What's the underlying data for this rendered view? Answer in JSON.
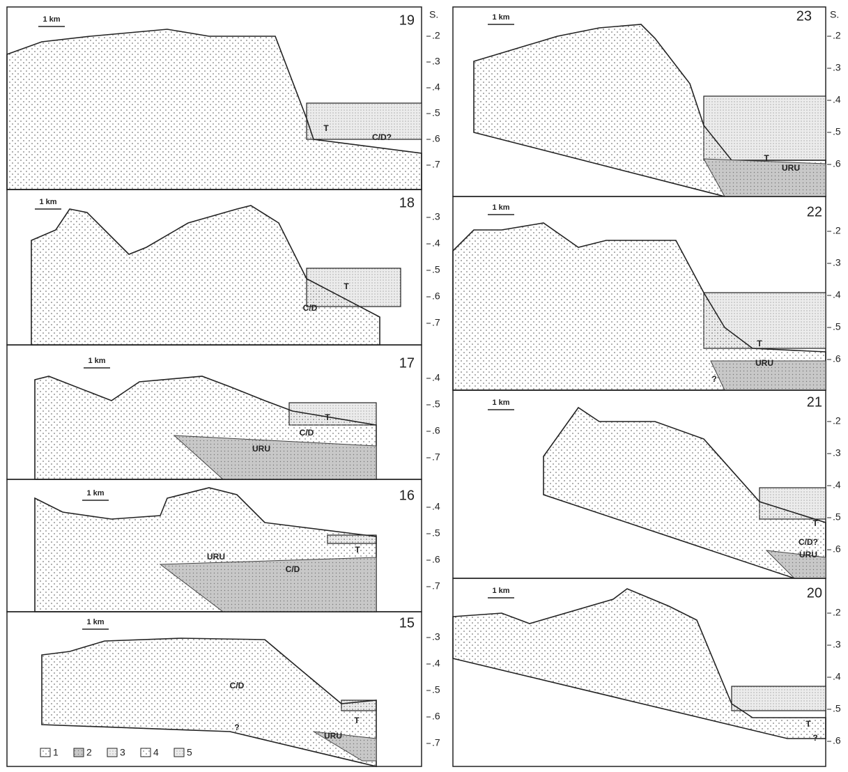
{
  "panels": [
    {
      "number": "19",
      "scale": "1 km",
      "axis_unit": "S.",
      "ticks": [
        ".2",
        ".3",
        ".4",
        ".5",
        ".6",
        ".7"
      ],
      "annotations": [
        "T",
        "C/D?"
      ]
    },
    {
      "number": "18",
      "scale": "1 km",
      "ticks": [
        ".3",
        ".4",
        ".5",
        ".6",
        ".7"
      ],
      "annotations": [
        "T",
        "C/D"
      ]
    },
    {
      "number": "17",
      "scale": "1 km",
      "ticks": [
        ".4",
        ".5",
        ".6",
        ".7"
      ],
      "annotations": [
        "T",
        "C/D",
        "URU"
      ]
    },
    {
      "number": "16",
      "scale": "1 km",
      "ticks": [
        ".4",
        ".5",
        ".6",
        ".7"
      ],
      "annotations": [
        "T",
        "C/D",
        "URU"
      ]
    },
    {
      "number": "15",
      "scale": "1 km",
      "ticks": [
        ".3",
        ".4",
        ".5",
        ".6",
        ".7"
      ],
      "annotations": [
        "C/D",
        "T",
        "URU",
        "?"
      ]
    },
    {
      "number": "23",
      "scale": "1 km",
      "axis_unit": "S.",
      "ticks": [
        ".2",
        ".3",
        ".4",
        ".5",
        ".6"
      ],
      "annotations": [
        "T",
        "URU"
      ]
    },
    {
      "number": "22",
      "scale": "1 km",
      "ticks": [
        ".2",
        ".3",
        ".4",
        ".5",
        ".6"
      ],
      "annotations": [
        "T",
        "URU",
        "?"
      ]
    },
    {
      "number": "21",
      "scale": "1 km",
      "ticks": [
        ".2",
        ".3",
        ".4",
        ".5",
        ".6"
      ],
      "annotations": [
        "T",
        "C/D?",
        "URU"
      ]
    },
    {
      "number": "20",
      "scale": "1 km",
      "ticks": [
        ".2",
        ".3",
        ".4",
        ".5",
        ".6"
      ],
      "annotations": [
        "T",
        "?"
      ]
    }
  ],
  "legend": [
    "1",
    "2",
    "3",
    "4",
    "5"
  ]
}
